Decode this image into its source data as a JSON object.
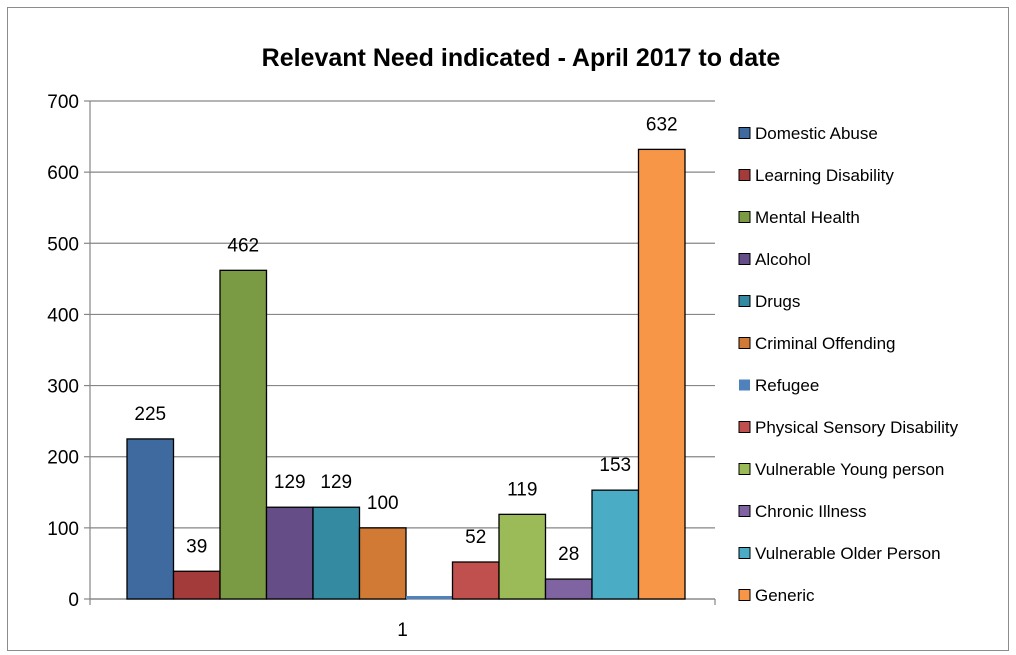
{
  "chart_data": {
    "type": "bar",
    "title": "Relevant Need indicated - April 2017 to date",
    "xlabel": "",
    "ylabel": "",
    "categories": [
      "1"
    ],
    "ylim": [
      0,
      700
    ],
    "yticks": [
      0,
      100,
      200,
      300,
      400,
      500,
      600,
      700
    ],
    "grid": true,
    "legend_position": "right",
    "series": [
      {
        "name": "Domestic Abuse",
        "values": [
          225
        ],
        "color": "#3E6AA0"
      },
      {
        "name": "Learning Disability",
        "values": [
          39
        ],
        "color": "#A33B3A"
      },
      {
        "name": "Mental Health",
        "values": [
          462
        ],
        "color": "#7A9A43"
      },
      {
        "name": "Alcohol",
        "values": [
          129
        ],
        "color": "#654E87"
      },
      {
        "name": "Drugs",
        "values": [
          129
        ],
        "color": "#348AA1"
      },
      {
        "name": "Criminal Offending",
        "values": [
          100
        ],
        "color": "#D07A35"
      },
      {
        "name": "Refugee",
        "values": [
          0
        ],
        "color": "#4F81BD"
      },
      {
        "name": "Physical Sensory Disability",
        "values": [
          52
        ],
        "color": "#C0504D"
      },
      {
        "name": "Vulnerable Young person",
        "values": [
          119
        ],
        "color": "#9BBB59"
      },
      {
        "name": "Chronic Illness",
        "values": [
          28
        ],
        "color": "#8064A2"
      },
      {
        "name": "Vulnerable Older Person",
        "values": [
          153
        ],
        "color": "#4BACC6"
      },
      {
        "name": "Generic",
        "values": [
          632
        ],
        "color": "#F79646"
      }
    ],
    "data_labels": [
      "225",
      "39",
      "462",
      "129",
      "129",
      "100",
      "",
      "52",
      "119",
      "28",
      "153",
      "632"
    ]
  }
}
